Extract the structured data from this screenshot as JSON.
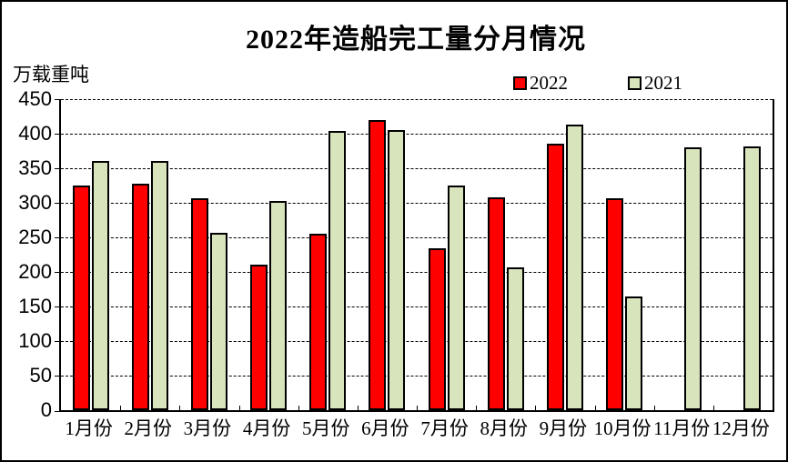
{
  "title": "2022年造船完工量分月情况",
  "y_unit_label": "万载重吨",
  "legend": {
    "items": [
      {
        "label": "2022",
        "color": "#FF0000"
      },
      {
        "label": "2021",
        "color": "#D8E4BC"
      }
    ]
  },
  "chart_data": {
    "type": "bar",
    "title": "2022年造船完工量分月情况",
    "ylabel": "万载重吨",
    "categories": [
      "1月份",
      "2月份",
      "3月份",
      "4月份",
      "5月份",
      "6月份",
      "7月份",
      "8月份",
      "9月份",
      "10月份",
      "11月份",
      "12月份"
    ],
    "series": [
      {
        "name": "2022",
        "color": "#FF0000",
        "values": [
          325,
          327,
          307,
          210,
          255,
          420,
          234,
          308,
          385,
          306,
          null,
          null
        ]
      },
      {
        "name": "2021",
        "color": "#D8E4BC",
        "values": [
          360,
          361,
          256,
          302,
          404,
          405,
          325,
          207,
          413,
          165,
          380,
          381
        ]
      }
    ],
    "ylim": [
      0,
      450
    ],
    "yticks": [
      0,
      50,
      100,
      150,
      200,
      250,
      300,
      350,
      400,
      450
    ],
    "grid": true,
    "legend_position": "top-right"
  }
}
